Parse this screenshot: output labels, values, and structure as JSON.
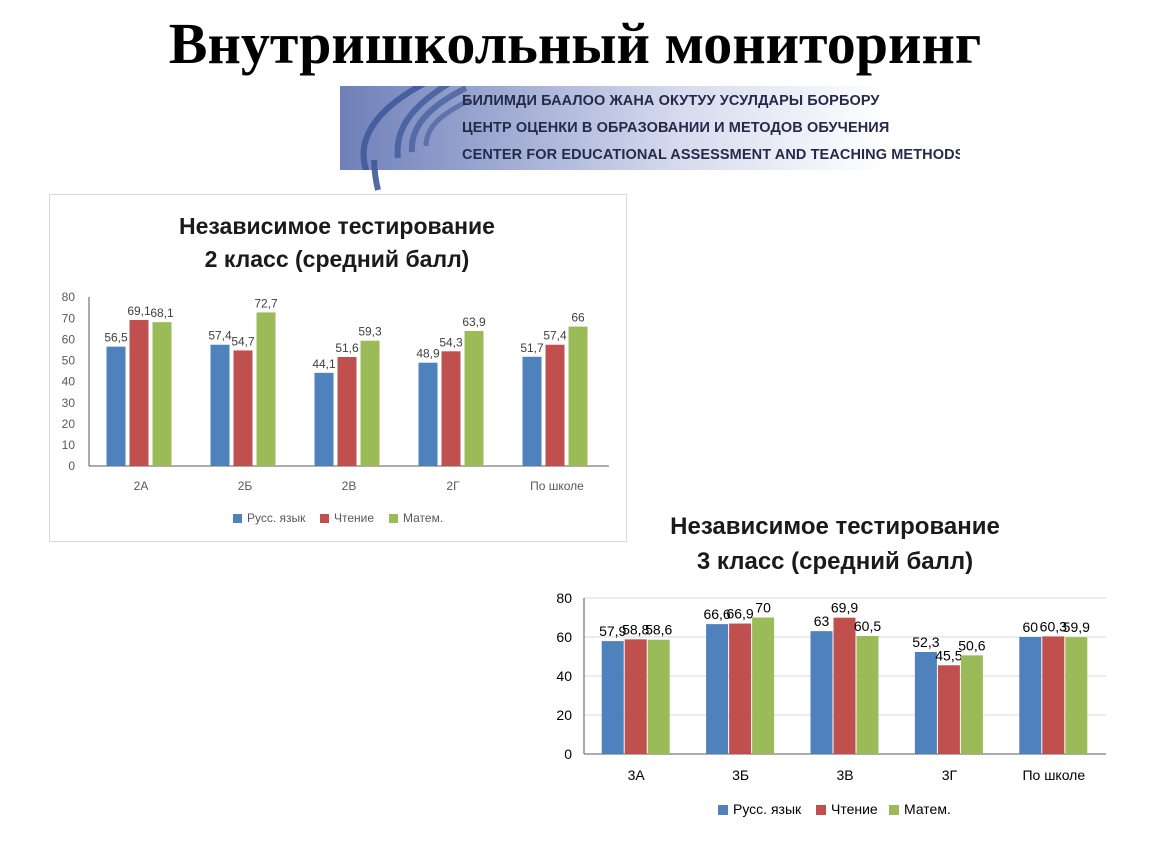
{
  "slide": {
    "title": "Внутришкольный мониторинг",
    "banner": {
      "lines": [
        "БИЛИМДИ БААЛОО ЖАНА ОКУТУУ УСУЛДАРЫ БОРБОРУ",
        "ЦЕНТР ОЦЕНКИ В ОБРАЗОВАНИИ И МЕТОДОВ ОБУЧЕНИЯ",
        "CENTER FOR EDUCATIONAL ASSESSMENT AND TEACHING METHODS"
      ]
    }
  },
  "colors": {
    "series": [
      "#4f81bd",
      "#c0504d",
      "#9bbb59"
    ],
    "grid": "#d9d9d9",
    "axis": "#595959",
    "text": "#404040"
  },
  "chart_data": [
    {
      "type": "bar",
      "title": "Независимое тестирование\n2 класс (средний балл)",
      "title_lines": [
        "Независимое тестирование",
        "2 класс (средний балл)"
      ],
      "categories": [
        "2А",
        "2Б",
        "2В",
        "2Г",
        "По школе"
      ],
      "series": [
        {
          "name": "Русс. язык",
          "values": [
            56.5,
            57.4,
            44.1,
            48.9,
            51.7
          ],
          "labels": [
            "56,5",
            "57,4",
            "44,1",
            "48,9",
            "51,7"
          ]
        },
        {
          "name": "Чтение",
          "values": [
            69.1,
            54.7,
            51.6,
            54.3,
            57.4
          ],
          "labels": [
            "69,1",
            "54,7",
            "51,6",
            "54,3",
            "57,4"
          ]
        },
        {
          "name": "Матем.",
          "values": [
            68.1,
            72.7,
            59.3,
            63.9,
            66
          ],
          "labels": [
            "68,1",
            "72,7",
            "59,3",
            "63,9",
            "66"
          ]
        }
      ],
      "ylim": [
        0,
        80
      ],
      "yticks": [
        0,
        10,
        20,
        30,
        40,
        50,
        60,
        70,
        80
      ],
      "grid": false,
      "legend": "bottom"
    },
    {
      "type": "bar",
      "title": "Независимое тестирование\n3 класс (средний балл)",
      "title_lines": [
        "Независимое тестирование",
        "3 класс (средний балл)"
      ],
      "categories": [
        "3А",
        "3Б",
        "3В",
        "3Г",
        "По школе"
      ],
      "series": [
        {
          "name": "Русс. язык",
          "values": [
            57.9,
            66.6,
            63,
            52.3,
            60
          ],
          "labels": [
            "57,9",
            "66,6",
            "63",
            "52,3",
            "60"
          ]
        },
        {
          "name": "Чтение",
          "values": [
            58.8,
            66.9,
            69.9,
            45.5,
            60.3
          ],
          "labels": [
            "58,8",
            "66,9",
            "69,9",
            "45,5",
            "60,3"
          ]
        },
        {
          "name": "Матем.",
          "values": [
            58.6,
            70,
            60.5,
            50.6,
            59.9
          ],
          "labels": [
            "58,6",
            "70",
            "60,5",
            "50,6",
            "59,9"
          ]
        }
      ],
      "ylim": [
        0,
        80
      ],
      "yticks": [
        0,
        20,
        40,
        60,
        80
      ],
      "grid": true,
      "legend": "bottom"
    }
  ]
}
